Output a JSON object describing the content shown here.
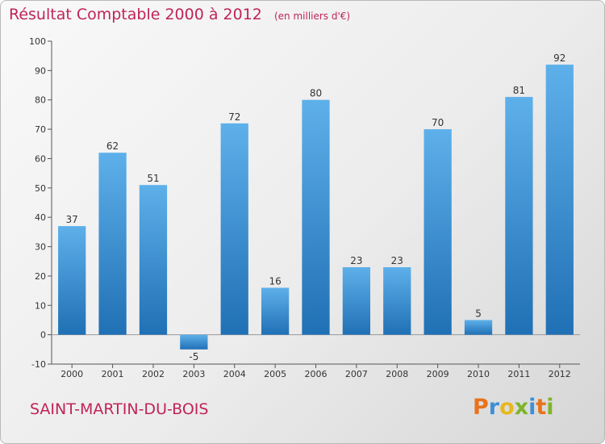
{
  "header": {
    "title": "Résultat Comptable 2000 à 2012",
    "unit": "(en milliers d'€)"
  },
  "footer": {
    "commune": "SAINT-MARTIN-DU-BOIS",
    "logo_text": "Proxiti",
    "logo_letters": [
      {
        "char": "P",
        "color": "#e8731c"
      },
      {
        "char": "r",
        "color": "#3d8fd6"
      },
      {
        "char": "o",
        "color": "#e8b81c"
      },
      {
        "char": "x",
        "color": "#7db52a"
      },
      {
        "char": "i",
        "color": "#3d8fd6"
      },
      {
        "char": "t",
        "color": "#e8731c"
      },
      {
        "char": "i",
        "color": "#7db52a"
      }
    ]
  },
  "colors": {
    "accent": "#c0235a",
    "bar_light": "#5eb0ea",
    "bar_dark": "#2070b5",
    "axis": "#555555"
  },
  "chart_data": {
    "type": "bar",
    "categories": [
      "2000",
      "2001",
      "2002",
      "2003",
      "2004",
      "2005",
      "2006",
      "2007",
      "2008",
      "2009",
      "2010",
      "2011",
      "2012"
    ],
    "values": [
      37,
      62,
      51,
      -5,
      72,
      16,
      80,
      23,
      23,
      70,
      5,
      81,
      92
    ],
    "ylim": [
      -10,
      100
    ],
    "yticks": [
      -10,
      0,
      10,
      20,
      30,
      40,
      50,
      60,
      70,
      80,
      90,
      100
    ],
    "grid": false,
    "legend": "none"
  }
}
